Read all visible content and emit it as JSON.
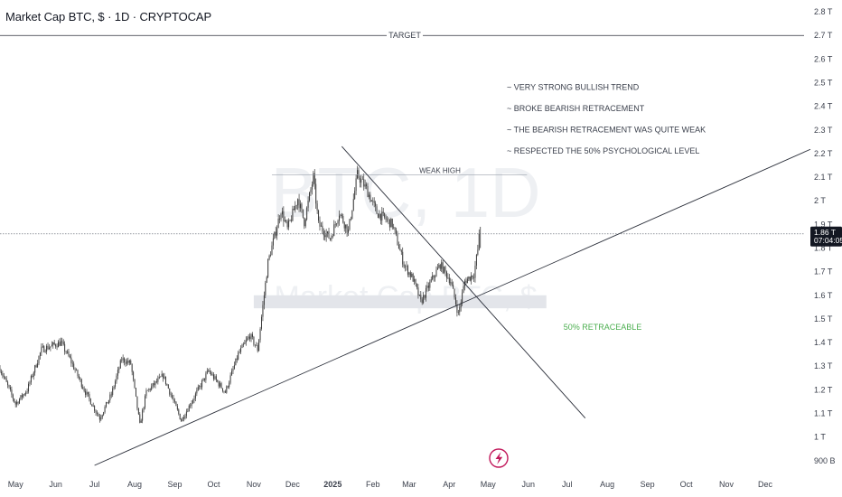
{
  "header": {
    "title": "Market Cap BTC, $ · 1D · CRYPTOCAP"
  },
  "watermark": {
    "line1": "BTC, 1D",
    "line2": "Market Cap BTC, $"
  },
  "colors": {
    "candle": "#3b3b3b",
    "line": "#2a2e39",
    "retrace_zone": "#e3e5ea",
    "retrace_text": "#4caf50",
    "price_tag_bg": "#131722"
  },
  "price_tag": {
    "value": "1.86 T",
    "countdown": "07:04:05"
  },
  "chart_data": {
    "type": "candlestick",
    "symbol": "Market Cap BTC, $",
    "timeframe": "1D",
    "exchange": "CRYPTOCAP",
    "x_range": [
      "2024-04-19",
      "2025-12-31"
    ],
    "y_axis": {
      "unit": "T",
      "range_t": [
        0.88,
        2.85
      ],
      "tick_values_t": [
        0.9,
        1.0,
        1.1,
        1.2,
        1.3,
        1.4,
        1.5,
        1.6,
        1.7,
        1.8,
        1.9,
        2.0,
        2.1,
        2.2,
        2.3,
        2.4,
        2.5,
        2.6,
        2.7,
        2.8
      ],
      "tick_labels": [
        "900 B",
        "1 T",
        "1.1 T",
        "1.2 T",
        "1.3 T",
        "1.4 T",
        "1.5 T",
        "1.6 T",
        "1.7 T",
        "1.8 T",
        "1.9 T",
        "2 T",
        "2.1 T",
        "2.2 T",
        "2.3 T",
        "2.4 T",
        "2.5 T",
        "2.6 T",
        "2.7 T",
        "2.8 T"
      ]
    },
    "x_axis": {
      "ticks": [
        {
          "date": "2024-05-01",
          "label": "May"
        },
        {
          "date": "2024-06-01",
          "label": "Jun"
        },
        {
          "date": "2024-07-01",
          "label": "Jul"
        },
        {
          "date": "2024-08-01",
          "label": "Aug"
        },
        {
          "date": "2024-09-01",
          "label": "Sep"
        },
        {
          "date": "2024-10-01",
          "label": "Oct"
        },
        {
          "date": "2024-11-01",
          "label": "Nov"
        },
        {
          "date": "2024-12-01",
          "label": "Dec"
        },
        {
          "date": "2025-01-01",
          "label": "2025",
          "bold": true
        },
        {
          "date": "2025-02-01",
          "label": "Feb"
        },
        {
          "date": "2025-03-01",
          "label": "Mar"
        },
        {
          "date": "2025-04-01",
          "label": "Apr"
        },
        {
          "date": "2025-05-01",
          "label": "May"
        },
        {
          "date": "2025-06-01",
          "label": "Jun"
        },
        {
          "date": "2025-07-01",
          "label": "Jul"
        },
        {
          "date": "2025-08-01",
          "label": "Aug"
        },
        {
          "date": "2025-09-01",
          "label": "Sep"
        },
        {
          "date": "2025-10-01",
          "label": "Oct"
        },
        {
          "date": "2025-11-01",
          "label": "Nov"
        },
        {
          "date": "2025-12-01",
          "label": "Dec"
        }
      ]
    },
    "price_path": [
      [
        "2024-04-19",
        1.29
      ],
      [
        "2024-05-01",
        1.14
      ],
      [
        "2024-05-10",
        1.2
      ],
      [
        "2024-05-21",
        1.37
      ],
      [
        "2024-06-05",
        1.4
      ],
      [
        "2024-06-12",
        1.33
      ],
      [
        "2024-06-24",
        1.19
      ],
      [
        "2024-07-05",
        1.08
      ],
      [
        "2024-07-14",
        1.18
      ],
      [
        "2024-07-22",
        1.33
      ],
      [
        "2024-07-29",
        1.31
      ],
      [
        "2024-08-05",
        1.05
      ],
      [
        "2024-08-10",
        1.19
      ],
      [
        "2024-08-23",
        1.26
      ],
      [
        "2024-09-06",
        1.07
      ],
      [
        "2024-09-18",
        1.19
      ],
      [
        "2024-09-27",
        1.28
      ],
      [
        "2024-10-10",
        1.19
      ],
      [
        "2024-10-20",
        1.35
      ],
      [
        "2024-10-29",
        1.43
      ],
      [
        "2024-11-04",
        1.37
      ],
      [
        "2024-11-12",
        1.74
      ],
      [
        "2024-11-22",
        1.96
      ],
      [
        "2024-11-27",
        1.88
      ],
      [
        "2024-12-05",
        2.01
      ],
      [
        "2024-12-10",
        1.91
      ],
      [
        "2024-12-17",
        2.1
      ],
      [
        "2024-12-21",
        1.9
      ],
      [
        "2024-12-30",
        1.84
      ],
      [
        "2025-01-06",
        1.95
      ],
      [
        "2025-01-13",
        1.87
      ],
      [
        "2025-01-20",
        2.11
      ],
      [
        "2025-01-27",
        2.05
      ],
      [
        "2025-02-04",
        1.95
      ],
      [
        "2025-02-16",
        1.9
      ],
      [
        "2025-02-25",
        1.73
      ],
      [
        "2025-03-04",
        1.67
      ],
      [
        "2025-03-10",
        1.57
      ],
      [
        "2025-03-18",
        1.66
      ],
      [
        "2025-03-25",
        1.73
      ],
      [
        "2025-04-02",
        1.66
      ],
      [
        "2025-04-08",
        1.52
      ],
      [
        "2025-04-13",
        1.66
      ],
      [
        "2025-04-20",
        1.69
      ],
      [
        "2025-04-25",
        1.86
      ]
    ],
    "annotations": {
      "notes": [
        "~ VERY STRONG BULLISH TREND",
        "~ BROKE BEARISH RETRACEMENT",
        "~ THE BEARISH RETRACEMENT WAS QUITE WEAK",
        "~ RESPECTED THE 50% PSYCHOLOGICAL LEVEL"
      ],
      "target": {
        "label": "TARGET",
        "value_t": 2.7
      },
      "weak_high": {
        "label": "WEAK HIGH",
        "value_t": 2.11,
        "from": "2024-11-15",
        "to": "2025-05-31"
      },
      "retracement_zone": {
        "label": "50% RETRACEABLE",
        "from_t": 1.545,
        "to_t": 1.6,
        "from": "2024-11-01",
        "to": "2025-06-15"
      },
      "last_price_t": 1.86,
      "rising_trendline": {
        "p1": [
          "2024-07-01",
          0.88
        ],
        "p2": [
          "2025-04-08",
          1.56
        ]
      },
      "falling_trendline": {
        "p1": [
          "2025-01-08",
          2.23
        ],
        "p2": [
          "2025-07-15",
          1.08
        ]
      }
    },
    "grid": false
  }
}
